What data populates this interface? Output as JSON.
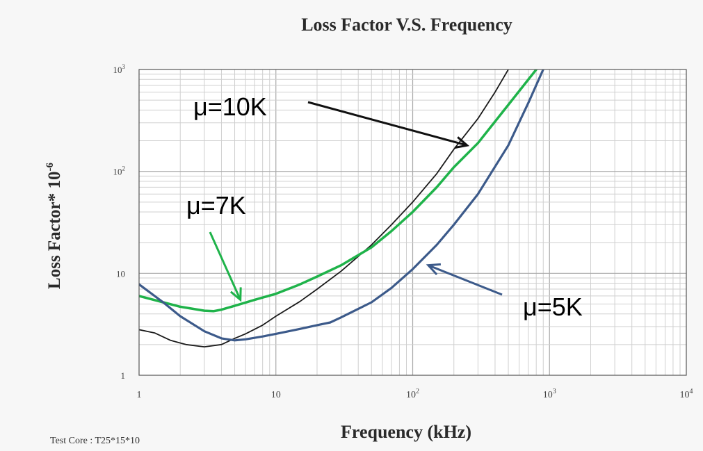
{
  "chart_data": {
    "type": "line",
    "title": "Loss Factor V.S. Frequency",
    "xlabel": "Frequency (kHz)",
    "ylabel": "Loss Factor* 10",
    "ylabel_superscript": "-6",
    "footnote": "Test Core : T25*15*10",
    "x_scale": "log",
    "y_scale": "log",
    "xlim": [
      1,
      10000
    ],
    "ylim": [
      1,
      1000
    ],
    "x_ticks": [
      {
        "value": 1,
        "base": "1",
        "exp": ""
      },
      {
        "value": 10,
        "base": "10",
        "exp": ""
      },
      {
        "value": 100,
        "base": "10",
        "exp": "2"
      },
      {
        "value": 1000,
        "base": "10",
        "exp": "3"
      },
      {
        "value": 10000,
        "base": "10",
        "exp": "4"
      }
    ],
    "y_ticks": [
      {
        "value": 1,
        "base": "1",
        "exp": ""
      },
      {
        "value": 10,
        "base": "10",
        "exp": ""
      },
      {
        "value": 100,
        "base": "10",
        "exp": "2"
      },
      {
        "value": 1000,
        "base": "10",
        "exp": "3"
      }
    ],
    "grid": true,
    "series": [
      {
        "name": "μ=10K",
        "color": "#1a1a1a",
        "x": [
          1,
          1.3,
          1.7,
          2.2,
          3,
          4,
          5,
          6,
          8,
          10,
          15,
          20,
          30,
          50,
          70,
          100,
          150,
          200,
          300,
          400,
          500
        ],
        "y": [
          2.8,
          2.6,
          2.2,
          2.0,
          1.9,
          2.0,
          2.3,
          2.55,
          3.1,
          3.8,
          5.3,
          7.0,
          10.5,
          19,
          30,
          50,
          95,
          165,
          330,
          600,
          1000
        ]
      },
      {
        "name": "μ=7K",
        "color": "#1fb34a",
        "x": [
          1,
          1.5,
          2,
          3,
          3.5,
          4,
          5,
          7,
          10,
          15,
          20,
          30,
          50,
          70,
          100,
          150,
          200,
          300,
          500,
          800
        ],
        "y": [
          6.0,
          5.2,
          4.7,
          4.3,
          4.25,
          4.4,
          4.8,
          5.5,
          6.3,
          7.8,
          9.3,
          12,
          18,
          26,
          40,
          70,
          110,
          190,
          450,
          1000
        ]
      },
      {
        "name": "μ=5K",
        "color": "#3c5a8a",
        "x": [
          1,
          1.5,
          2,
          3,
          4,
          5,
          6,
          8,
          10,
          15,
          20,
          25,
          30,
          50,
          70,
          100,
          150,
          200,
          300,
          500,
          700,
          900
        ],
        "y": [
          7.8,
          5.2,
          3.8,
          2.7,
          2.3,
          2.2,
          2.25,
          2.4,
          2.55,
          2.85,
          3.1,
          3.3,
          3.7,
          5.2,
          7.2,
          11,
          19,
          30,
          60,
          180,
          470,
          1000
        ]
      }
    ],
    "annotations": [
      {
        "label": "μ=10K",
        "target_x": 250,
        "target_y": 180
      },
      {
        "label": "μ=7K",
        "target_x": 5.5,
        "target_y": 5.5
      },
      {
        "label": "μ=5K",
        "target_x": 130,
        "target_y": 12
      }
    ]
  }
}
